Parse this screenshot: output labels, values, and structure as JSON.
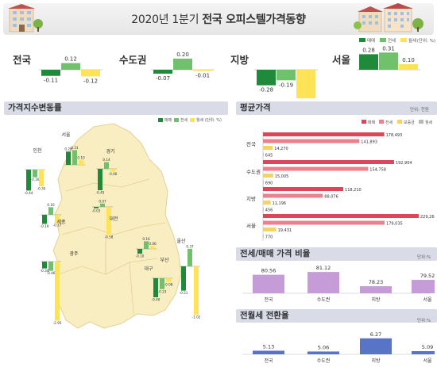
{
  "header": {
    "title_prefix": "2020년 1분기 ",
    "title_bold": "전국 오피스텔가격동향"
  },
  "top": {
    "legend": [
      "매매",
      "전세",
      "월세"
    ],
    "unit": "(단위: %)",
    "regions": [
      {
        "name": "전국",
        "values": [
          -0.11,
          0.12,
          -0.12
        ]
      },
      {
        "name": "수도권",
        "values": [
          -0.07,
          0.2,
          -0.01
        ]
      },
      {
        "name": "지방",
        "values": [
          -0.28,
          -0.19,
          -0.59
        ]
      },
      {
        "name": "서울",
        "values": [
          0.28,
          0.31,
          0.1
        ]
      }
    ]
  },
  "map_panel": {
    "title": "가격지수변동률",
    "legend": [
      "매매",
      "전세",
      "월세"
    ],
    "unit": "(단위: %)",
    "regions": [
      {
        "name": "서울",
        "values": [
          0.28,
          0.31,
          0.1
        ]
      },
      {
        "name": "인천",
        "values": [
          -0.44,
          -0.16,
          -0.35
        ]
      },
      {
        "name": "경기",
        "values": [
          -0.45,
          0.14,
          -0.06
        ]
      },
      {
        "name": "세종",
        "values": [
          -0.19,
          0.16,
          -0.17
        ]
      },
      {
        "name": "대전",
        "values": [
          -0.03,
          0.07,
          -0.58
        ]
      },
      {
        "name": "대구",
        "values": [
          -0.1,
          0.16,
          0.06
        ]
      },
      {
        "name": "광주",
        "values": [
          -0.34,
          -0.46,
          -2.95
        ]
      },
      {
        "name": "울산",
        "values": [
          -0.51,
          0.37,
          -1.02
        ]
      },
      {
        "name": "부산",
        "values": [
          -0.4,
          -0.23,
          -0.08
        ]
      }
    ]
  },
  "avg_panel": {
    "title": "평균가격",
    "unit": "단위: 천원",
    "legend": [
      "매매",
      "전세",
      "보증금",
      "월세"
    ],
    "regions": [
      {
        "name": "전국",
        "values": [
          178493,
          141893,
          14270,
          645
        ],
        "labels": [
          "178,493",
          "141,893",
          "14,270",
          "645"
        ]
      },
      {
        "name": "수도권",
        "values": [
          192904,
          154758,
          15005,
          690
        ],
        "labels": [
          "192,904",
          "154,758",
          "15,005",
          "690"
        ]
      },
      {
        "name": "지방",
        "values": [
          118210,
          88076,
          11196,
          456
        ],
        "labels": [
          "118,210",
          "88,076",
          "11,196",
          "456"
        ]
      },
      {
        "name": "서울",
        "values": [
          229260,
          179035,
          19431,
          770
        ],
        "labels": [
          "229,260",
          "179,035",
          "19,431",
          "770"
        ]
      }
    ]
  },
  "ratio_panel": {
    "title": "전세/매매 가격 비율",
    "unit": "단위:%",
    "categories": [
      "전국",
      "수도권",
      "지방",
      "서울"
    ],
    "values": [
      80.56,
      81.12,
      78.23,
      79.52
    ]
  },
  "conv_panel": {
    "title": "전월세 전환율",
    "unit": "단위:%",
    "categories": [
      "전국",
      "수도권",
      "지방",
      "서울"
    ],
    "values": [
      5.13,
      5.06,
      6.27,
      5.09
    ]
  },
  "colors": {
    "sale": "#1e8a3a",
    "jeonse": "#6fc26b",
    "wolse": "#ffe357",
    "avg_sale": "#e04458",
    "avg_jeonse": "#f07f8e",
    "deposit": "#f4d35e",
    "avg_wolse": "#b9b9b9",
    "ratio": "#c59bd8",
    "conv": "#5874c6"
  },
  "chart_data": [
    {
      "type": "bar",
      "title": "2020년 1분기 전국 오피스텔가격동향",
      "categories": [
        "전국",
        "수도권",
        "지방",
        "서울"
      ],
      "series": [
        {
          "name": "매매",
          "values": [
            -0.11,
            -0.07,
            -0.28,
            0.28
          ]
        },
        {
          "name": "전세",
          "values": [
            0.12,
            0.2,
            -0.19,
            0.31
          ]
        },
        {
          "name": "월세",
          "values": [
            -0.12,
            -0.01,
            -0.59,
            0.1
          ]
        }
      ]
    },
    {
      "type": "bar",
      "title": "가격지수변동률",
      "categories": [
        "서울",
        "인천",
        "경기",
        "세종",
        "대전",
        "대구",
        "광주",
        "울산",
        "부산"
      ],
      "series": [
        {
          "name": "매매",
          "values": [
            0.28,
            -0.44,
            -0.45,
            -0.19,
            -0.03,
            -0.1,
            -0.34,
            -0.51,
            -0.4
          ]
        },
        {
          "name": "전세",
          "values": [
            0.31,
            -0.16,
            0.14,
            0.16,
            0.07,
            0.16,
            -0.46,
            0.37,
            -0.23
          ]
        },
        {
          "name": "월세",
          "values": [
            0.1,
            -0.35,
            -0.06,
            -0.17,
            -0.58,
            0.06,
            -2.95,
            -1.02,
            -0.08
          ]
        }
      ]
    },
    {
      "type": "bar",
      "title": "평균가격",
      "categories": [
        "전국",
        "수도권",
        "지방",
        "서울"
      ],
      "series": [
        {
          "name": "매매",
          "values": [
            178493,
            192904,
            118210,
            229260
          ]
        },
        {
          "name": "전세",
          "values": [
            141893,
            154758,
            88076,
            179035
          ]
        },
        {
          "name": "보증금",
          "values": [
            14270,
            15005,
            11196,
            19431
          ]
        },
        {
          "name": "월세",
          "values": [
            645,
            690,
            456,
            770
          ]
        }
      ]
    },
    {
      "type": "bar",
      "title": "전세/매매 가격 비율",
      "categories": [
        "전국",
        "수도권",
        "지방",
        "서울"
      ],
      "values": [
        80.56,
        81.12,
        78.23,
        79.52
      ]
    },
    {
      "type": "bar",
      "title": "전월세 전환율",
      "categories": [
        "전국",
        "수도권",
        "지방",
        "서울"
      ],
      "values": [
        5.13,
        5.06,
        6.27,
        5.09
      ]
    }
  ]
}
